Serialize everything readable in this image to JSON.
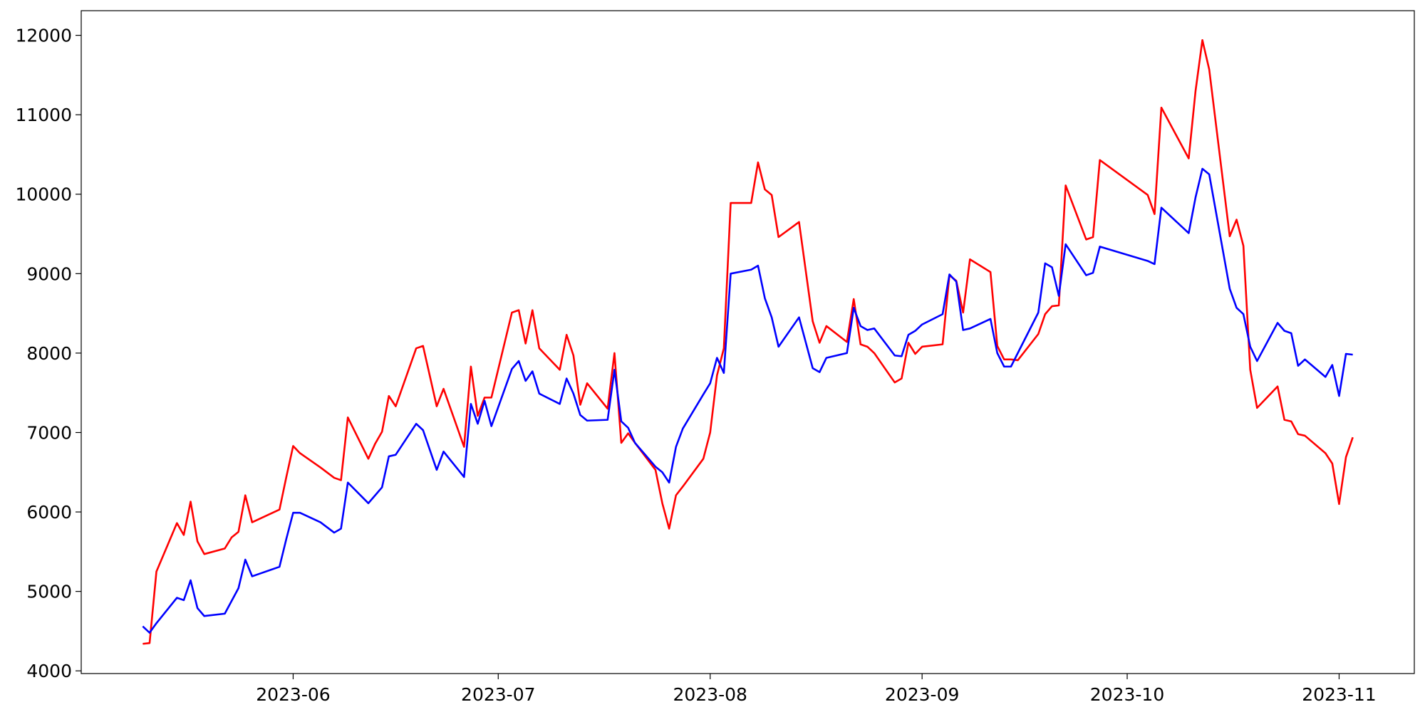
{
  "chart_data": {
    "type": "line",
    "x": [
      19487,
      19488,
      19489,
      19492,
      19493,
      19494,
      19495,
      19496,
      19499,
      19500,
      19501,
      19502,
      19503,
      19507,
      19508,
      19509,
      19510,
      19513,
      19515,
      19516,
      19517,
      19520,
      19521,
      19522,
      19523,
      19524,
      19527,
      19528,
      19530,
      19531,
      19534,
      19535,
      19536,
      19537,
      19538,
      19541,
      19542,
      19543,
      19544,
      19545,
      19548,
      19549,
      19550,
      19551,
      19552,
      19555,
      19556,
      19557,
      19558,
      19559,
      19562,
      19563,
      19564,
      19565,
      19566,
      19569,
      19570,
      19571,
      19572,
      19573,
      19576,
      19577,
      19578,
      19579,
      19580,
      19583,
      19585,
      19586,
      19587,
      19590,
      19591,
      19592,
      19593,
      19594,
      19597,
      19598,
      19599,
      19600,
      19601,
      19604,
      19605,
      19606,
      19607,
      19608,
      19611,
      19612,
      19613,
      19614,
      19615,
      19618,
      19619,
      19620,
      19621,
      19622,
      19625,
      19626,
      19627,
      19634,
      19635,
      19636,
      19640,
      19641,
      19642,
      19643,
      19646,
      19647,
      19648,
      19649,
      19650,
      19653,
      19654,
      19655,
      19656,
      19657,
      19660,
      19661,
      19662,
      19663,
      19664
    ],
    "series": [
      {
        "color": "#ff0000",
        "values": [
          4340,
          4350,
          5250,
          5860,
          5710,
          6130,
          5630,
          5470,
          5540,
          5680,
          5750,
          6210,
          5870,
          6030,
          6440,
          6830,
          6740,
          6560,
          6430,
          6400,
          7190,
          6670,
          6860,
          7010,
          7460,
          7330,
          8060,
          8090,
          7330,
          7550,
          6820,
          7830,
          7210,
          7440,
          7440,
          8510,
          8540,
          8120,
          8540,
          8060,
          7790,
          8230,
          7970,
          7350,
          7620,
          7300,
          8000,
          6870,
          6990,
          6870,
          6530,
          6110,
          5790,
          6210,
          6320,
          6670,
          7000,
          7720,
          8060,
          9890,
          9890,
          10400,
          10060,
          9990,
          9460,
          9650,
          8400,
          8130,
          8340,
          8140,
          8680,
          8110,
          8080,
          8000,
          7630,
          7680,
          8130,
          7990,
          8080,
          8110,
          8980,
          8910,
          8510,
          9180,
          9020,
          8090,
          7920,
          7920,
          7910,
          8240,
          8490,
          8590,
          8600,
          10110,
          9430,
          9460,
          10430,
          9990,
          9750,
          11090,
          10450,
          11300,
          11940,
          11570,
          9470,
          9680,
          9350,
          7790,
          7310,
          7580,
          7160,
          7140,
          6980,
          6960,
          6740,
          6610,
          6100,
          6690,
          6940
        ]
      },
      {
        "color": "#0000ff",
        "values": [
          4560,
          4480,
          4600,
          4920,
          4890,
          5140,
          4790,
          4690,
          4720,
          4880,
          5040,
          5400,
          5190,
          5310,
          5660,
          5990,
          5990,
          5870,
          5740,
          5790,
          6370,
          6110,
          6210,
          6310,
          6700,
          6720,
          7110,
          7030,
          6530,
          6760,
          6440,
          7360,
          7110,
          7400,
          7080,
          7800,
          7900,
          7650,
          7770,
          7490,
          7360,
          7680,
          7490,
          7220,
          7150,
          7160,
          7790,
          7140,
          7060,
          6870,
          6570,
          6500,
          6370,
          6820,
          7050,
          7480,
          7620,
          7940,
          7750,
          9000,
          9050,
          9100,
          8690,
          8450,
          8080,
          8450,
          7810,
          7760,
          7940,
          8000,
          8570,
          8340,
          8290,
          8310,
          7970,
          7960,
          8230,
          8280,
          8360,
          8490,
          8990,
          8900,
          8290,
          8310,
          8430,
          8000,
          7830,
          7830,
          8000,
          8510,
          9130,
          9080,
          8720,
          9370,
          8980,
          9010,
          9340,
          9160,
          9120,
          9830,
          9510,
          9960,
          10320,
          10250,
          8810,
          8570,
          8490,
          8080,
          7900,
          8380,
          8280,
          8250,
          7840,
          7920,
          7700,
          7850,
          7460,
          7990,
          7980
        ]
      }
    ],
    "xlim": [
      19478,
      19673
    ],
    "xticks": [
      {
        "value": 19509,
        "label": "2023-06"
      },
      {
        "value": 19539,
        "label": "2023-07"
      },
      {
        "value": 19570,
        "label": "2023-08"
      },
      {
        "value": 19601,
        "label": "2023-09"
      },
      {
        "value": 19631,
        "label": "2023-10"
      },
      {
        "value": 19662,
        "label": "2023-11"
      }
    ],
    "ylim": [
      3966,
      12310
    ],
    "yticks": [
      4000,
      5000,
      6000,
      7000,
      8000,
      9000,
      10000,
      11000,
      12000
    ]
  }
}
